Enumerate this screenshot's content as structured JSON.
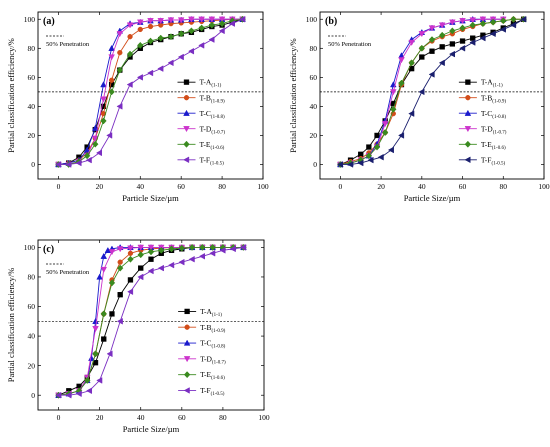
{
  "chart_data": [
    {
      "type": "line",
      "panel_label": "(a)",
      "xlabel": "Particle Size/µm",
      "ylabel": "Partial classification efficiency/%",
      "xlim": [
        -10,
        100
      ],
      "ylim": [
        -10,
        105
      ],
      "xticks": [
        0,
        20,
        40,
        60,
        80,
        100
      ],
      "yticks": [
        0,
        20,
        40,
        60,
        80,
        100
      ],
      "reference_line": {
        "y": 50,
        "label": "50% Penetration",
        "style": "dashed"
      },
      "legend_position": "right",
      "series": [
        {
          "name": "T-A",
          "sub": "(1-1)",
          "color": "#000000",
          "marker": "square",
          "x": [
            0,
            5,
            10,
            14,
            18,
            22,
            26,
            30,
            35,
            40,
            45,
            50,
            55,
            60,
            65,
            70,
            75,
            80,
            85,
            90
          ],
          "y": [
            0,
            1,
            5,
            12,
            24,
            40,
            55,
            65,
            74,
            80,
            84,
            86,
            88,
            90,
            91,
            93,
            95,
            96,
            98,
            100
          ]
        },
        {
          "name": "T-B",
          "sub": "(1-0.9)",
          "color": "#d24d1a",
          "marker": "circle",
          "x": [
            0,
            5,
            10,
            14,
            18,
            22,
            26,
            30,
            35,
            40,
            45,
            50,
            55,
            60,
            65,
            70,
            75,
            80,
            85,
            90
          ],
          "y": [
            0,
            1,
            3,
            8,
            18,
            35,
            58,
            77,
            88,
            93,
            95,
            96,
            97,
            97.5,
            98,
            98.5,
            99,
            99.5,
            100,
            100
          ]
        },
        {
          "name": "T-C",
          "sub": "(1-0.8)",
          "color": "#1a1acc",
          "marker": "triangle-up",
          "x": [
            0,
            5,
            10,
            14,
            18,
            22,
            26,
            30,
            35,
            40,
            45,
            50,
            55,
            60,
            65,
            70,
            75,
            80,
            85,
            90
          ],
          "y": [
            0,
            1,
            3,
            10,
            25,
            55,
            80,
            92,
            97,
            98,
            99,
            99,
            99.5,
            99.5,
            100,
            100,
            100,
            100,
            100,
            100
          ]
        },
        {
          "name": "T-D",
          "sub": "(1-0.7)",
          "color": "#cc33cc",
          "marker": "triangle-down",
          "x": [
            0,
            5,
            10,
            14,
            18,
            22,
            26,
            30,
            35,
            40,
            45,
            50,
            55,
            60,
            65,
            70,
            75,
            80,
            85,
            90
          ],
          "y": [
            0,
            0,
            2,
            6,
            18,
            45,
            74,
            90,
            96,
            98,
            99,
            99,
            99.5,
            99.5,
            100,
            100,
            100,
            100,
            100,
            100
          ]
        },
        {
          "name": "T-E",
          "sub": "(1-0.6)",
          "color": "#3a8a1f",
          "marker": "diamond",
          "x": [
            0,
            5,
            10,
            14,
            18,
            22,
            26,
            30,
            35,
            40,
            45,
            50,
            55,
            60,
            65,
            70,
            75,
            80,
            85,
            90
          ],
          "y": [
            0,
            0,
            2,
            6,
            14,
            30,
            50,
            65,
            76,
            82,
            85,
            87,
            88,
            90,
            92,
            94,
            96,
            97,
            99,
            100
          ]
        },
        {
          "name": "T-F",
          "sub": "(1-0.5)",
          "color": "#7a2ec2",
          "marker": "triangle-left",
          "x": [
            0,
            5,
            10,
            15,
            20,
            25,
            30,
            35,
            40,
            45,
            50,
            55,
            60,
            65,
            70,
            75,
            80,
            85,
            90
          ],
          "y": [
            0,
            0,
            1,
            3,
            8,
            20,
            40,
            55,
            60,
            63,
            66,
            70,
            74,
            78,
            82,
            86,
            92,
            97,
            100
          ]
        }
      ]
    },
    {
      "type": "line",
      "panel_label": "(b)",
      "xlabel": "Particle Size/µm",
      "ylabel": "Partial classification efficiency/%",
      "xlim": [
        -10,
        100
      ],
      "ylim": [
        -10,
        105
      ],
      "xticks": [
        0,
        20,
        40,
        60,
        80,
        100
      ],
      "yticks": [
        0,
        20,
        40,
        60,
        80,
        100
      ],
      "reference_line": {
        "y": 50,
        "label": "50% Penetration",
        "style": "dashed"
      },
      "legend_position": "right",
      "series": [
        {
          "name": "T-A",
          "sub": "(1-1)",
          "color": "#000000",
          "marker": "square",
          "x": [
            0,
            5,
            10,
            14,
            18,
            22,
            26,
            30,
            35,
            40,
            45,
            50,
            55,
            60,
            65,
            70,
            75,
            80,
            85,
            90
          ],
          "y": [
            0,
            3,
            7,
            12,
            20,
            30,
            42,
            55,
            66,
            74,
            78,
            81,
            83,
            85,
            87,
            89,
            91,
            94,
            97,
            100
          ]
        },
        {
          "name": "T-B",
          "sub": "(1-0.9)",
          "color": "#d24d1a",
          "marker": "circle",
          "x": [
            0,
            5,
            10,
            14,
            18,
            22,
            26,
            30,
            35,
            40,
            45,
            50,
            55,
            60,
            65,
            70,
            75,
            80,
            85,
            90
          ],
          "y": [
            0,
            2,
            4,
            8,
            14,
            22,
            35,
            55,
            70,
            80,
            85,
            88,
            90,
            93,
            95,
            97,
            98,
            99,
            100,
            100
          ]
        },
        {
          "name": "T-C",
          "sub": "(1-0.8)",
          "color": "#1a1acc",
          "marker": "triangle-up",
          "x": [
            0,
            5,
            10,
            14,
            18,
            22,
            26,
            30,
            35,
            40,
            45,
            50,
            55,
            60,
            65,
            70,
            75,
            80
          ],
          "y": [
            0,
            1,
            3,
            6,
            14,
            30,
            55,
            75,
            86,
            91,
            94,
            96,
            98,
            99,
            100,
            100,
            100,
            100
          ]
        },
        {
          "name": "T-D",
          "sub": "(1-0.7)",
          "color": "#cc33cc",
          "marker": "triangle-down",
          "x": [
            0,
            5,
            10,
            14,
            18,
            22,
            26,
            30,
            35,
            40,
            45,
            50,
            55,
            60,
            65,
            70,
            75,
            80
          ],
          "y": [
            0,
            1,
            3,
            6,
            12,
            28,
            50,
            72,
            84,
            90,
            94,
            96,
            98,
            99,
            99.5,
            100,
            100,
            100
          ]
        },
        {
          "name": "T-E",
          "sub": "(1-0.6)",
          "color": "#3a8a1f",
          "marker": "diamond",
          "x": [
            0,
            5,
            10,
            14,
            18,
            22,
            26,
            30,
            35,
            40,
            45,
            50,
            55,
            60,
            65,
            70,
            75,
            80,
            85,
            90
          ],
          "y": [
            0,
            1,
            3,
            6,
            12,
            22,
            38,
            56,
            70,
            80,
            86,
            89,
            92,
            94,
            96,
            97,
            98,
            99,
            100,
            100
          ]
        },
        {
          "name": "T-F",
          "sub": "(1-0.5)",
          "color": "#1a1f6e",
          "marker": "triangle-left",
          "x": [
            0,
            5,
            10,
            15,
            20,
            25,
            30,
            35,
            40,
            45,
            50,
            55,
            60,
            65,
            70,
            75,
            80,
            85,
            90
          ],
          "y": [
            0,
            0,
            1,
            3,
            5,
            10,
            20,
            35,
            50,
            62,
            70,
            76,
            80,
            84,
            87,
            90,
            93,
            96,
            100
          ]
        }
      ]
    },
    {
      "type": "line",
      "panel_label": "(c)",
      "xlabel": "Particle Size/µm",
      "ylabel": "Partial classification efficiency/%",
      "xlim": [
        -10,
        100
      ],
      "ylim": [
        -10,
        105
      ],
      "xticks": [
        0,
        20,
        40,
        60,
        80,
        100
      ],
      "yticks": [
        0,
        20,
        40,
        60,
        80,
        100
      ],
      "reference_line": {
        "y": 50,
        "label": "50% Penetration",
        "style": "dashed"
      },
      "legend_position": "right",
      "series": [
        {
          "name": "T-A",
          "sub": "(1-1)",
          "color": "#000000",
          "marker": "square",
          "x": [
            0,
            5,
            10,
            14,
            18,
            22,
            26,
            30,
            35,
            40,
            45,
            50,
            55,
            60,
            65,
            70,
            75,
            80,
            85,
            90
          ],
          "y": [
            0,
            3,
            6,
            12,
            22,
            38,
            55,
            68,
            78,
            86,
            92,
            96,
            98,
            99,
            100,
            100,
            100,
            100,
            100,
            100
          ]
        },
        {
          "name": "T-B",
          "sub": "(1-0.9)",
          "color": "#d24d1a",
          "marker": "circle",
          "x": [
            0,
            5,
            10,
            14,
            18,
            22,
            26,
            30,
            35,
            40,
            45,
            50,
            55,
            60,
            65,
            70,
            75,
            80,
            85,
            90
          ],
          "y": [
            0,
            1,
            3,
            10,
            28,
            55,
            78,
            90,
            96,
            98,
            99,
            99.5,
            100,
            100,
            100,
            100,
            100,
            100,
            100,
            100
          ]
        },
        {
          "name": "T-C",
          "sub": "(1-0.8)",
          "color": "#1a1acc",
          "marker": "triangle-up",
          "x": [
            0,
            5,
            10,
            14,
            16,
            18,
            20,
            22,
            24,
            26,
            30,
            35,
            40,
            45,
            50,
            55,
            60,
            65,
            70,
            75,
            80,
            85,
            90
          ],
          "y": [
            0,
            1,
            3,
            10,
            25,
            50,
            80,
            94,
            98,
            99,
            100,
            100,
            100,
            100,
            100,
            100,
            100,
            100,
            100,
            100,
            100,
            100,
            100
          ]
        },
        {
          "name": "T-D",
          "sub": "(1-0.7)",
          "color": "#cc33cc",
          "marker": "triangle-down",
          "x": [
            0,
            5,
            10,
            14,
            18,
            22,
            26,
            30,
            35,
            40,
            45,
            50,
            55,
            60,
            65,
            70,
            75,
            80,
            85,
            90
          ],
          "y": [
            0,
            1,
            3,
            12,
            45,
            85,
            97,
            99,
            99.5,
            100,
            100,
            100,
            100,
            100,
            100,
            100,
            100,
            100,
            100,
            100
          ]
        },
        {
          "name": "T-E",
          "sub": "(1-0.6)",
          "color": "#3a8a1f",
          "marker": "diamond",
          "x": [
            0,
            5,
            10,
            14,
            18,
            22,
            26,
            30,
            35,
            40,
            45,
            50,
            55,
            60,
            65,
            70,
            75,
            80,
            85,
            90
          ],
          "y": [
            0,
            1,
            3,
            10,
            28,
            55,
            76,
            86,
            92,
            95,
            97,
            98,
            99,
            99.5,
            100,
            100,
            100,
            100,
            100,
            100
          ]
        },
        {
          "name": "T-F",
          "sub": "(1-0.5)",
          "color": "#7a2ec2",
          "marker": "triangle-left",
          "x": [
            0,
            5,
            10,
            15,
            20,
            25,
            30,
            35,
            40,
            45,
            50,
            55,
            60,
            65,
            70,
            75,
            80,
            85,
            90
          ],
          "y": [
            0,
            0,
            1,
            3,
            10,
            28,
            50,
            70,
            80,
            84,
            86,
            88,
            90,
            92,
            94,
            96,
            98,
            99,
            100
          ]
        }
      ]
    }
  ]
}
